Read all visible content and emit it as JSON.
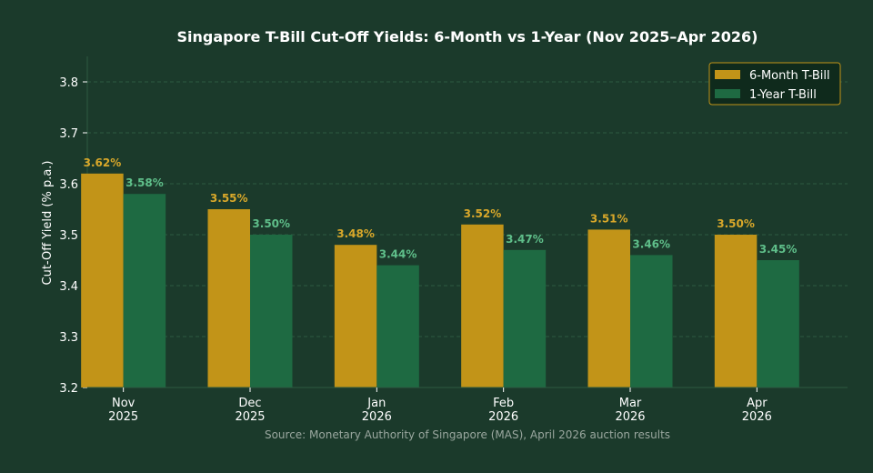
{
  "chart_data": {
    "type": "bar",
    "title": "Singapore T-Bill Cut-Off Yields: 6-Month vs 1-Year (Nov 2025–Apr 2026)",
    "xlabel": "",
    "ylabel": "Cut-Off Yield (% p.a.)",
    "categories": [
      [
        "Nov",
        "2025"
      ],
      [
        "Dec",
        "2025"
      ],
      [
        "Jan",
        "2026"
      ],
      [
        "Feb",
        "2026"
      ],
      [
        "Mar",
        "2026"
      ],
      [
        "Apr",
        "2026"
      ]
    ],
    "series": [
      {
        "name": "6-Month T-Bill",
        "color": "#c29418",
        "label_color": "#d9a82a",
        "values": [
          3.62,
          3.55,
          3.48,
          3.52,
          3.51,
          3.5
        ],
        "labels": [
          "3.62%",
          "3.55%",
          "3.48%",
          "3.52%",
          "3.51%",
          "3.50%"
        ]
      },
      {
        "name": "1-Year T-Bill",
        "color": "#1e6a42",
        "label_color": "#5fbf8a",
        "values": [
          3.58,
          3.5,
          3.44,
          3.47,
          3.46,
          3.45
        ],
        "labels": [
          "3.58%",
          "3.50%",
          "3.44%",
          "3.47%",
          "3.46%",
          "3.45%"
        ]
      }
    ],
    "ylim": [
      3.2,
      3.85
    ],
    "yticks": [
      "3.2",
      "3.3",
      "3.4",
      "3.5",
      "3.6",
      "3.7",
      "3.8"
    ],
    "grid": true,
    "legend_position": "top-right",
    "source": "Source: Monetary Authority of Singapore (MAS), April 2026 auction results"
  },
  "colors": {
    "background": "#1b3a2b",
    "grid": "#2c5a41",
    "legend_border": "#c29418",
    "legend_bg": "#0f2a1c"
  }
}
